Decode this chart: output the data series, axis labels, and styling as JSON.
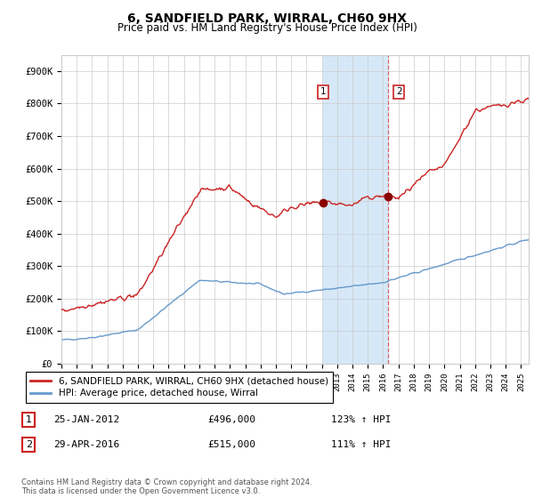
{
  "title": "6, SANDFIELD PARK, WIRRAL, CH60 9HX",
  "subtitle": "Price paid vs. HM Land Registry's House Price Index (HPI)",
  "title_fontsize": 10,
  "subtitle_fontsize": 8.5,
  "ylim": [
    0,
    950000
  ],
  "yticks": [
    0,
    100000,
    200000,
    300000,
    400000,
    500000,
    600000,
    700000,
    800000,
    900000
  ],
  "ytick_labels": [
    "£0",
    "£100K",
    "£200K",
    "£300K",
    "£400K",
    "£500K",
    "£600K",
    "£700K",
    "£800K",
    "£900K"
  ],
  "hpi_color": "#6699cc",
  "price_color": "#cc2222",
  "marker_color": "#8b0000",
  "annotation_box_color": "#cc2222",
  "shade_color": "#d6e8f7",
  "dashed_line_color": "#dd4444",
  "grid_color": "#cccccc",
  "background_color": "#ffffff",
  "sale1_date_num": 2012.07,
  "sale1_price": 496000,
  "sale1_label": "1",
  "sale1_date_str": "25-JAN-2012",
  "sale1_hpi_pct": "123%",
  "sale2_date_num": 2016.33,
  "sale2_price": 515000,
  "sale2_label": "2",
  "sale2_date_str": "29-APR-2016",
  "sale2_hpi_pct": "111%",
  "legend_label1": "6, SANDFIELD PARK, WIRRAL, CH60 9HX (detached house)",
  "legend_label2": "HPI: Average price, detached house, Wirral",
  "footer_line1": "Contains HM Land Registry data © Crown copyright and database right 2024.",
  "footer_line2": "This data is licensed under the Open Government Licence v3.0.",
  "xstart": 1995.0,
  "xend": 2025.5
}
